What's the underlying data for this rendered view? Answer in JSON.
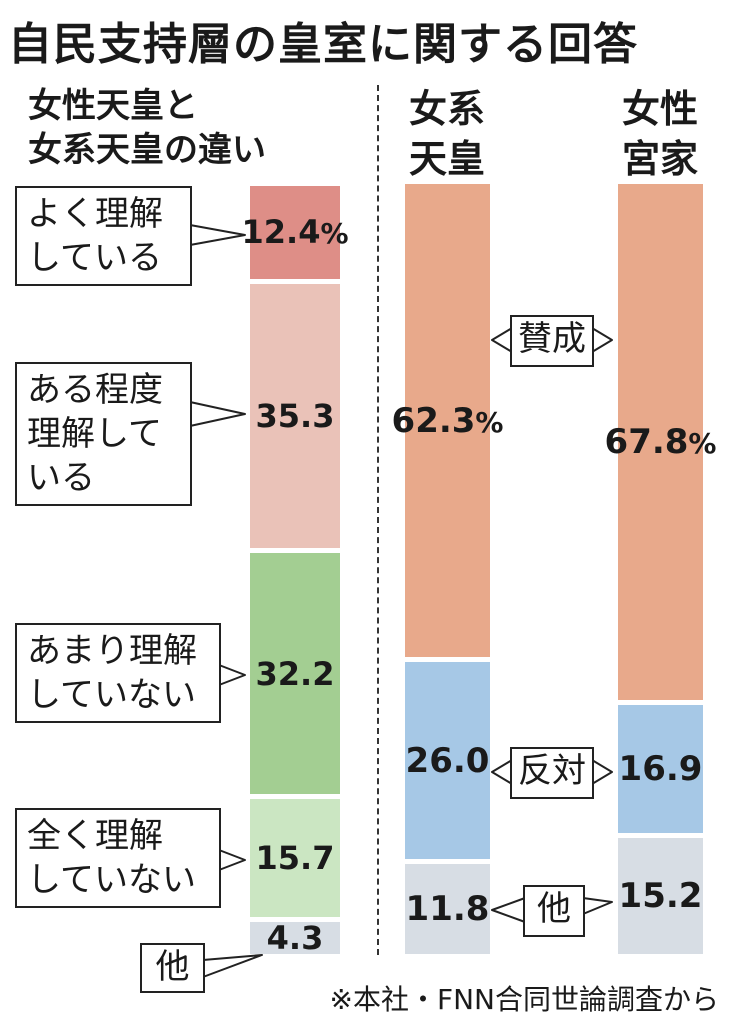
{
  "title": "自民支持層の皇室に関する回答",
  "source": "※本社・FNN合同世論調査から",
  "chart_data": [
    {
      "type": "bar",
      "stacked": true,
      "title": "女性天皇と女系天皇の違い",
      "categories": [
        "女性天皇と女系天皇の違い"
      ],
      "series": [
        {
          "name": "よく理解している",
          "values": [
            12.4
          ],
          "label": "12.4",
          "color": "#de8e87"
        },
        {
          "name": "ある程度理解している",
          "values": [
            35.3
          ],
          "label": "35.3",
          "color": "#eac2b8"
        },
        {
          "name": "あまり理解していない",
          "values": [
            32.2
          ],
          "label": "32.2",
          "color": "#a3ce92"
        },
        {
          "name": "全く理解していない",
          "values": [
            15.7
          ],
          "label": "15.7",
          "color": "#cbe6c2"
        },
        {
          "name": "他",
          "values": [
            4.3
          ],
          "label": "4.3",
          "color": "#d7dde4"
        }
      ]
    },
    {
      "type": "bar",
      "stacked": true,
      "categories": [
        "女系天皇",
        "女性宮家"
      ],
      "category_labels": [
        [
          "女系",
          "天皇"
        ],
        [
          "女性",
          "宮家"
        ]
      ],
      "series": [
        {
          "name": "賛成",
          "values": [
            62.3,
            67.8
          ],
          "labels": [
            "62.3",
            "67.8"
          ],
          "color": "#e8a98b"
        },
        {
          "name": "反対",
          "values": [
            26.0,
            16.9
          ],
          "labels": [
            "26.0",
            "16.9"
          ],
          "color": "#a6c8e6"
        },
        {
          "name": "他",
          "values": [
            11.8,
            15.2
          ],
          "labels": [
            "11.8",
            "15.2"
          ],
          "color": "#d7dde4"
        }
      ]
    }
  ],
  "callouts_left": [
    [
      "よく理解",
      "している"
    ],
    [
      "ある程度",
      "理解して",
      "いる"
    ],
    [
      "あまり理解",
      "していない"
    ],
    [
      "全く理解",
      "していない"
    ],
    [
      "他"
    ]
  ],
  "pct_suffix": "%"
}
